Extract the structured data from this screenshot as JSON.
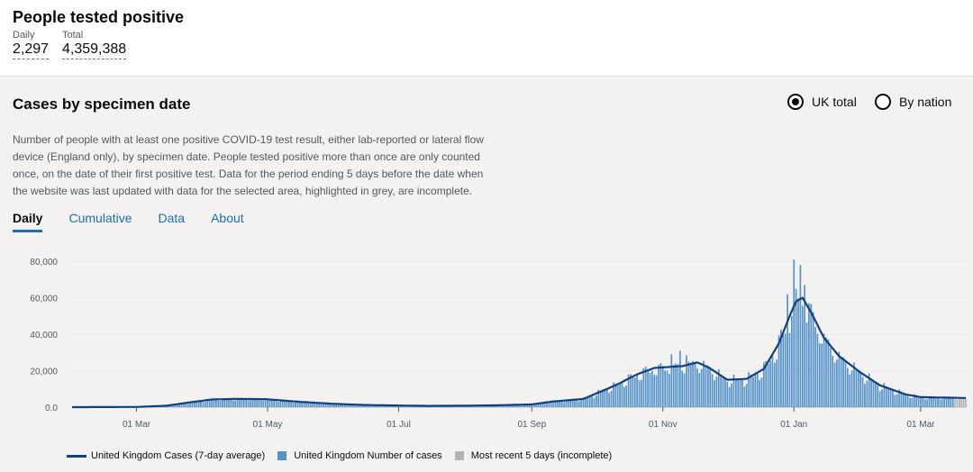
{
  "header": {
    "title": "People tested positive",
    "daily_label": "Daily",
    "daily_value": "2,297",
    "total_label": "Total",
    "total_value": "4,359,388"
  },
  "card": {
    "title": "Cases by specimen date",
    "radio_uk": "UK total",
    "radio_nation": "By nation",
    "radio_selected": "UK total",
    "description": "Number of people with at least one positive COVID-19 test result, either lab-reported or lateral flow device (England only), by specimen date. People tested positive more than once are only counted once, on the date of their first positive test. Data for the period ending 5 days before the date when the website was last updated with data for the selected area, highlighted in grey, are incomplete.",
    "tabs": [
      "Daily",
      "Cumulative",
      "Data",
      "About"
    ],
    "active_tab": "Daily"
  },
  "colors": {
    "bar": "#5694ca",
    "line": "#12407f",
    "incomplete": "#b1b4b6",
    "link": "#1d70b8"
  },
  "chart_data": {
    "type": "bar",
    "title": "",
    "xlabel": "",
    "ylabel": "",
    "ylim": [
      0,
      85000
    ],
    "yticks": [
      0,
      20000,
      40000,
      60000,
      80000
    ],
    "ytick_labels": [
      "0.0",
      "20,000",
      "40,000",
      "60,000",
      "80,000"
    ],
    "x_range": [
      "2020-01-31",
      "2021-03-22"
    ],
    "xticks": [
      {
        "date": "2020-03-01",
        "label": "01 Mar"
      },
      {
        "date": "2020-05-01",
        "label": "01 May"
      },
      {
        "date": "2020-07-01",
        "label": "01 Jul"
      },
      {
        "date": "2020-09-01",
        "label": "01 Sep"
      },
      {
        "date": "2020-11-01",
        "label": "01 Nov"
      },
      {
        "date": "2021-01-01",
        "label": "01 Jan"
      },
      {
        "date": "2021-03-01",
        "label": "01 Mar"
      }
    ],
    "incomplete_from": "2021-03-17",
    "average_anchors": [
      [
        "2020-01-31",
        0
      ],
      [
        "2020-03-01",
        100
      ],
      [
        "2020-03-15",
        800
      ],
      [
        "2020-03-25",
        2500
      ],
      [
        "2020-04-05",
        4200
      ],
      [
        "2020-04-15",
        4500
      ],
      [
        "2020-04-30",
        4400
      ],
      [
        "2020-05-15",
        3000
      ],
      [
        "2020-06-01",
        1800
      ],
      [
        "2020-06-15",
        1200
      ],
      [
        "2020-07-01",
        900
      ],
      [
        "2020-07-15",
        700
      ],
      [
        "2020-08-01",
        800
      ],
      [
        "2020-08-15",
        1000
      ],
      [
        "2020-09-01",
        1500
      ],
      [
        "2020-09-10",
        3000
      ],
      [
        "2020-09-25",
        4500
      ],
      [
        "2020-10-10",
        12000
      ],
      [
        "2020-10-20",
        18000
      ],
      [
        "2020-10-28",
        21500
      ],
      [
        "2020-11-10",
        22500
      ],
      [
        "2020-11-17",
        24500
      ],
      [
        "2020-11-22",
        22000
      ],
      [
        "2020-12-01",
        15000
      ],
      [
        "2020-12-10",
        15500
      ],
      [
        "2020-12-18",
        21000
      ],
      [
        "2020-12-25",
        35000
      ],
      [
        "2020-12-30",
        50000
      ],
      [
        "2021-01-02",
        58000
      ],
      [
        "2021-01-05",
        60000
      ],
      [
        "2021-01-09",
        52000
      ],
      [
        "2021-01-15",
        38000
      ],
      [
        "2021-01-22",
        28000
      ],
      [
        "2021-02-01",
        19000
      ],
      [
        "2021-02-10",
        12000
      ],
      [
        "2021-02-22",
        7000
      ],
      [
        "2021-03-01",
        5500
      ],
      [
        "2021-03-22",
        5000
      ]
    ],
    "daily_spikes": [
      [
        "2020-12-29",
        62000
      ],
      [
        "2021-01-01",
        81000
      ],
      [
        "2021-01-04",
        78000
      ],
      [
        "2021-01-06",
        67000
      ],
      [
        "2020-12-31",
        50000
      ],
      [
        "2020-11-09",
        31000
      ],
      [
        "2020-11-05",
        29000
      ],
      [
        "2020-11-12",
        28500
      ]
    ],
    "series": [
      {
        "name": "United Kingdom Cases (7-day average)",
        "kind": "line"
      },
      {
        "name": "United Kingdom Number of cases",
        "kind": "bar"
      },
      {
        "name": "Most recent 5 days (incomplete)",
        "kind": "bar"
      }
    ]
  }
}
